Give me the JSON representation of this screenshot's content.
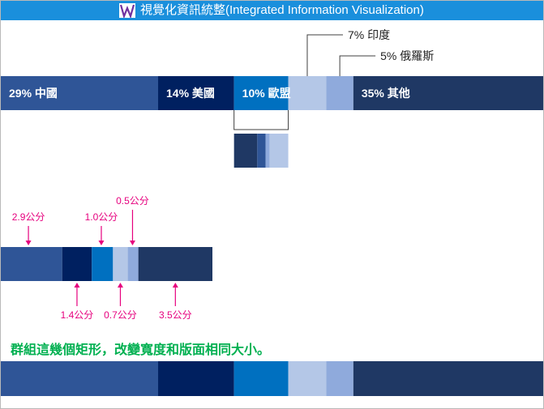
{
  "header": {
    "title": "視覺化資訊統整(Integrated Information Visualization)"
  },
  "colors": {
    "header": "#1a8fdc",
    "segments": [
      "#2f5597",
      "#002060",
      "#0070c0",
      "#b4c7e7",
      "#8faadc",
      "#1f3864"
    ],
    "annotation": "#e6007e",
    "instruction": "#00b050"
  },
  "chart_data": [
    {
      "type": "bar",
      "stacked": true,
      "orientation": "horizontal",
      "categories": [
        "中國",
        "美國",
        "歐盟",
        "印度",
        "俄羅斯",
        "其他"
      ],
      "values": [
        29,
        14,
        10,
        7,
        5,
        35
      ],
      "unit": "%",
      "labels": [
        "29% 中國",
        "14% 美國",
        "10% 歐盟",
        "7% 印度",
        "5% 俄羅斯",
        "35% 其他"
      ]
    },
    {
      "type": "bar",
      "stacked": true,
      "orientation": "horizontal",
      "values": [
        2.9,
        1.4,
        1.0,
        0.7,
        0.5,
        3.5
      ],
      "unit": "公分",
      "labels": [
        "2.9公分",
        "1.4公分",
        "1.0公分",
        "0.7公分",
        "0.5公分",
        "3.5公分"
      ]
    },
    {
      "type": "bar",
      "stacked": true,
      "orientation": "horizontal",
      "values": [
        29,
        14,
        10,
        7,
        5,
        35
      ]
    }
  ],
  "instruction": "群組這幾個矩形，改變寬度和版面相同大小。"
}
